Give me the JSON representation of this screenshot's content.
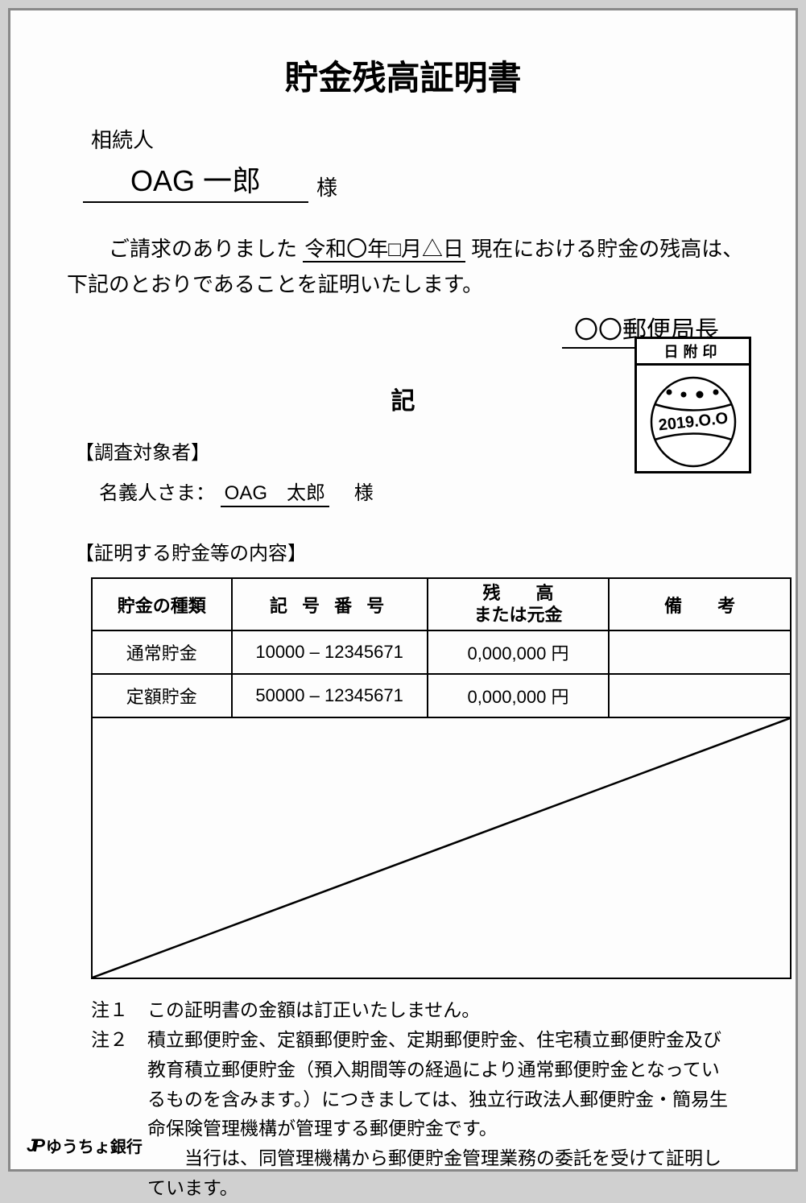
{
  "title": "貯金残高証明書",
  "heir": {
    "label": "相続人",
    "name": "OAG 一郎",
    "suffix": "様"
  },
  "statement": {
    "prefix": "ご請求のありました",
    "date": "令和〇年□月△日",
    "suffix": "現在における貯金の残高は、下記のとおりであることを証明いたします。"
  },
  "postmaster": "〇〇郵便局長",
  "ki": "記",
  "stamp": {
    "header": "日附印",
    "date": "2019.O.O"
  },
  "subject": {
    "header": "【調査対象者】",
    "holder_label": "名義人さま：",
    "holder_name": "OAG　太郎",
    "holder_suffix": "様"
  },
  "content_header": "【証明する貯金等の内容】",
  "table": {
    "headers": {
      "type": "貯金の種類",
      "number": "記 号 番 号",
      "balance_line1": "残　　高",
      "balance_line2": "または元金",
      "remark": "備　　考"
    },
    "rows": [
      {
        "type": "通常貯金",
        "number": "10000 – 12345671",
        "balance": "0,000,000 円",
        "remark": ""
      },
      {
        "type": "定額貯金",
        "number": "50000 – 12345671",
        "balance": "0,000,000 円",
        "remark": ""
      }
    ],
    "empty_rows": 6
  },
  "notes": {
    "note1_label": "注１",
    "note1_text": "この証明書の金額は訂正いたしません。",
    "note2_label": "注２",
    "note2_text": "積立郵便貯金、定額郵便貯金、定期郵便貯金、住宅積立郵便貯金及び教育積立郵便貯金（預入期間等の経過により通常郵便貯金となっているものを含みます。）につきましては、独立行政法人郵便貯金・簡易生命保険管理機構が管理する郵便貯金です。",
    "note2_cont": "当行は、同管理機構から郵便貯金管理業務の委託を受けて証明しています。"
  },
  "bank": {
    "logo_mark": "JP",
    "name": "ゆうちょ銀行"
  }
}
